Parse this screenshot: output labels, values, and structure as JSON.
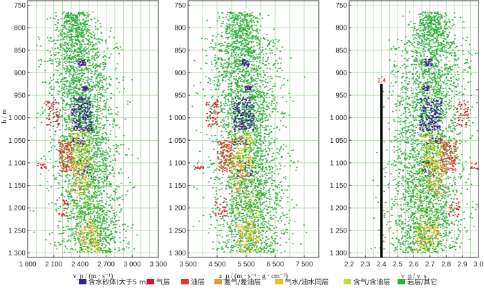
{
  "chart_data": [
    {
      "type": "scatter",
      "title": "",
      "xlabel": "v_p / (m · s⁻¹)",
      "ylabel": "h / m",
      "xlim": [
        1800,
        3300
      ],
      "ylim": [
        1310,
        740
      ],
      "xticks": [
        1800,
        2100,
        2400,
        2700,
        3000,
        3300
      ],
      "xtick_labels": [
        "1 800",
        "2 100",
        "2 400",
        "2 700",
        "3 000",
        "3 300"
      ],
      "yticks": [
        750,
        800,
        850,
        900,
        950,
        1000,
        1050,
        1100,
        1150,
        1200,
        1250,
        1300
      ],
      "ytick_labels": [
        "750",
        "800",
        "850",
        "900",
        "950",
        "1 000",
        "1 050",
        "1 100",
        "1 150",
        "1 200",
        "1 250",
        "1 300"
      ],
      "x_grid_step": 100,
      "distribution": {
        "center_top": 2350,
        "center_bottom": 2550,
        "spread": 190,
        "depth_top": 765,
        "depth_bottom": 1300
      }
    },
    {
      "type": "scatter",
      "title": "",
      "xlabel": "z_p / (m · s⁻¹ · g · cm⁻³)",
      "ylabel": "",
      "xlim": [
        3500,
        8000
      ],
      "ylim": [
        1310,
        740
      ],
      "xticks": [
        3500,
        4500,
        5500,
        6500,
        7500
      ],
      "xtick_labels": [
        "3 500",
        "4 500",
        "5 500",
        "6 500",
        "7 500"
      ],
      "yticks": [
        750,
        800,
        850,
        900,
        950,
        1000,
        1050,
        1100,
        1150,
        1200,
        1250,
        1300
      ],
      "ytick_labels": [
        "750",
        "800",
        "850",
        "900",
        "950",
        "1 000",
        "1 050",
        "1 100",
        "1 150",
        "1 200",
        "1 250",
        "1 300"
      ],
      "x_grid_step": 500,
      "distribution": {
        "center_top": 5300,
        "center_bottom": 5700,
        "spread": 620,
        "depth_top": 765,
        "depth_bottom": 1300
      }
    },
    {
      "type": "scatter",
      "title": "",
      "xlabel": "v_p / v_s",
      "ylabel": "",
      "xlim": [
        2.2,
        3.0
      ],
      "ylim": [
        1310,
        740
      ],
      "xticks": [
        2.2,
        2.3,
        2.4,
        2.5,
        2.6,
        2.7,
        2.8,
        2.9,
        3.0
      ],
      "xtick_labels": [
        "2.2",
        "2.3",
        "2.4",
        "2.5",
        "2.6",
        "2.7",
        "2.8",
        "2.9",
        "3.0"
      ],
      "yticks": [
        750,
        800,
        850,
        900,
        950,
        1000,
        1050,
        1100,
        1150,
        1200,
        1250,
        1300
      ],
      "ytick_labels": [
        "750",
        "800",
        "850",
        "900",
        "950",
        "1 000",
        "1 050",
        "1 100",
        "1 150",
        "1 200",
        "1 250",
        "1 300"
      ],
      "x_grid_step": 0.05,
      "distribution": {
        "center_top": 2.72,
        "center_bottom": 2.66,
        "spread": 0.11,
        "depth_top": 765,
        "depth_bottom": 1300
      },
      "cutoff_line": {
        "x": 2.4,
        "y_from": 925,
        "y_to": 1310,
        "label": "2.4"
      }
    }
  ],
  "legend": [
    {
      "key": "water",
      "label": "含水砂体(大于5 m)",
      "color": "#3a1f8e"
    },
    {
      "key": "gas",
      "label": "气层",
      "color": "#d4142a"
    },
    {
      "key": "oil",
      "label": "油层",
      "color": "#e0392a"
    },
    {
      "key": "poor",
      "label": "差气/差油层",
      "color": "#e59a3a"
    },
    {
      "key": "gwow",
      "label": "气水/油水同层",
      "color": "#e8c11e"
    },
    {
      "key": "gasoil",
      "label": "含气/含油层",
      "color": "#c6dc2a"
    },
    {
      "key": "rock",
      "label": "岩层/其它",
      "color": "#2fae3a"
    }
  ],
  "clusters": [
    {
      "cls": "water",
      "h0": 870,
      "h1": 885,
      "off": 0.1,
      "sp": 0.18,
      "n": 30
    },
    {
      "cls": "water",
      "h0": 930,
      "h1": 940,
      "off": 0.15,
      "sp": 0.15,
      "n": 25
    },
    {
      "cls": "water",
      "h0": 955,
      "h1": 1030,
      "off": -0.05,
      "sp": 0.55,
      "n": 180
    },
    {
      "cls": "water",
      "h0": 1045,
      "h1": 1060,
      "off": -0.25,
      "sp": 0.4,
      "n": 30
    },
    {
      "cls": "water",
      "h0": 1095,
      "h1": 1130,
      "off": -0.1,
      "sp": 0.4,
      "n": 30
    },
    {
      "cls": "gas",
      "h0": 960,
      "h1": 1020,
      "off": -1.15,
      "sp": 0.35,
      "n": 45
    },
    {
      "cls": "gas",
      "h0": 1100,
      "h1": 1115,
      "off": -1.7,
      "sp": 0.25,
      "n": 14
    },
    {
      "cls": "gas",
      "h0": 1180,
      "h1": 1220,
      "off": -1.0,
      "sp": 0.3,
      "n": 25
    },
    {
      "cls": "oil",
      "h0": 1050,
      "h1": 1120,
      "off": -0.75,
      "sp": 0.4,
      "n": 130
    },
    {
      "cls": "poor",
      "h0": 1100,
      "h1": 1170,
      "off": -0.35,
      "sp": 0.5,
      "n": 80
    },
    {
      "cls": "poor",
      "h0": 1230,
      "h1": 1280,
      "off": -0.2,
      "sp": 0.5,
      "n": 40
    },
    {
      "cls": "gwow",
      "h0": 1030,
      "h1": 1110,
      "off": -0.2,
      "sp": 0.5,
      "n": 90
    },
    {
      "cls": "gwow",
      "h0": 1240,
      "h1": 1300,
      "off": -0.05,
      "sp": 0.5,
      "n": 60
    },
    {
      "cls": "gasoil",
      "h0": 1020,
      "h1": 1300,
      "off": -0.1,
      "sp": 0.6,
      "n": 140
    }
  ],
  "settings": {
    "rock_points_per_panel": 3200,
    "seed": 20240917
  }
}
